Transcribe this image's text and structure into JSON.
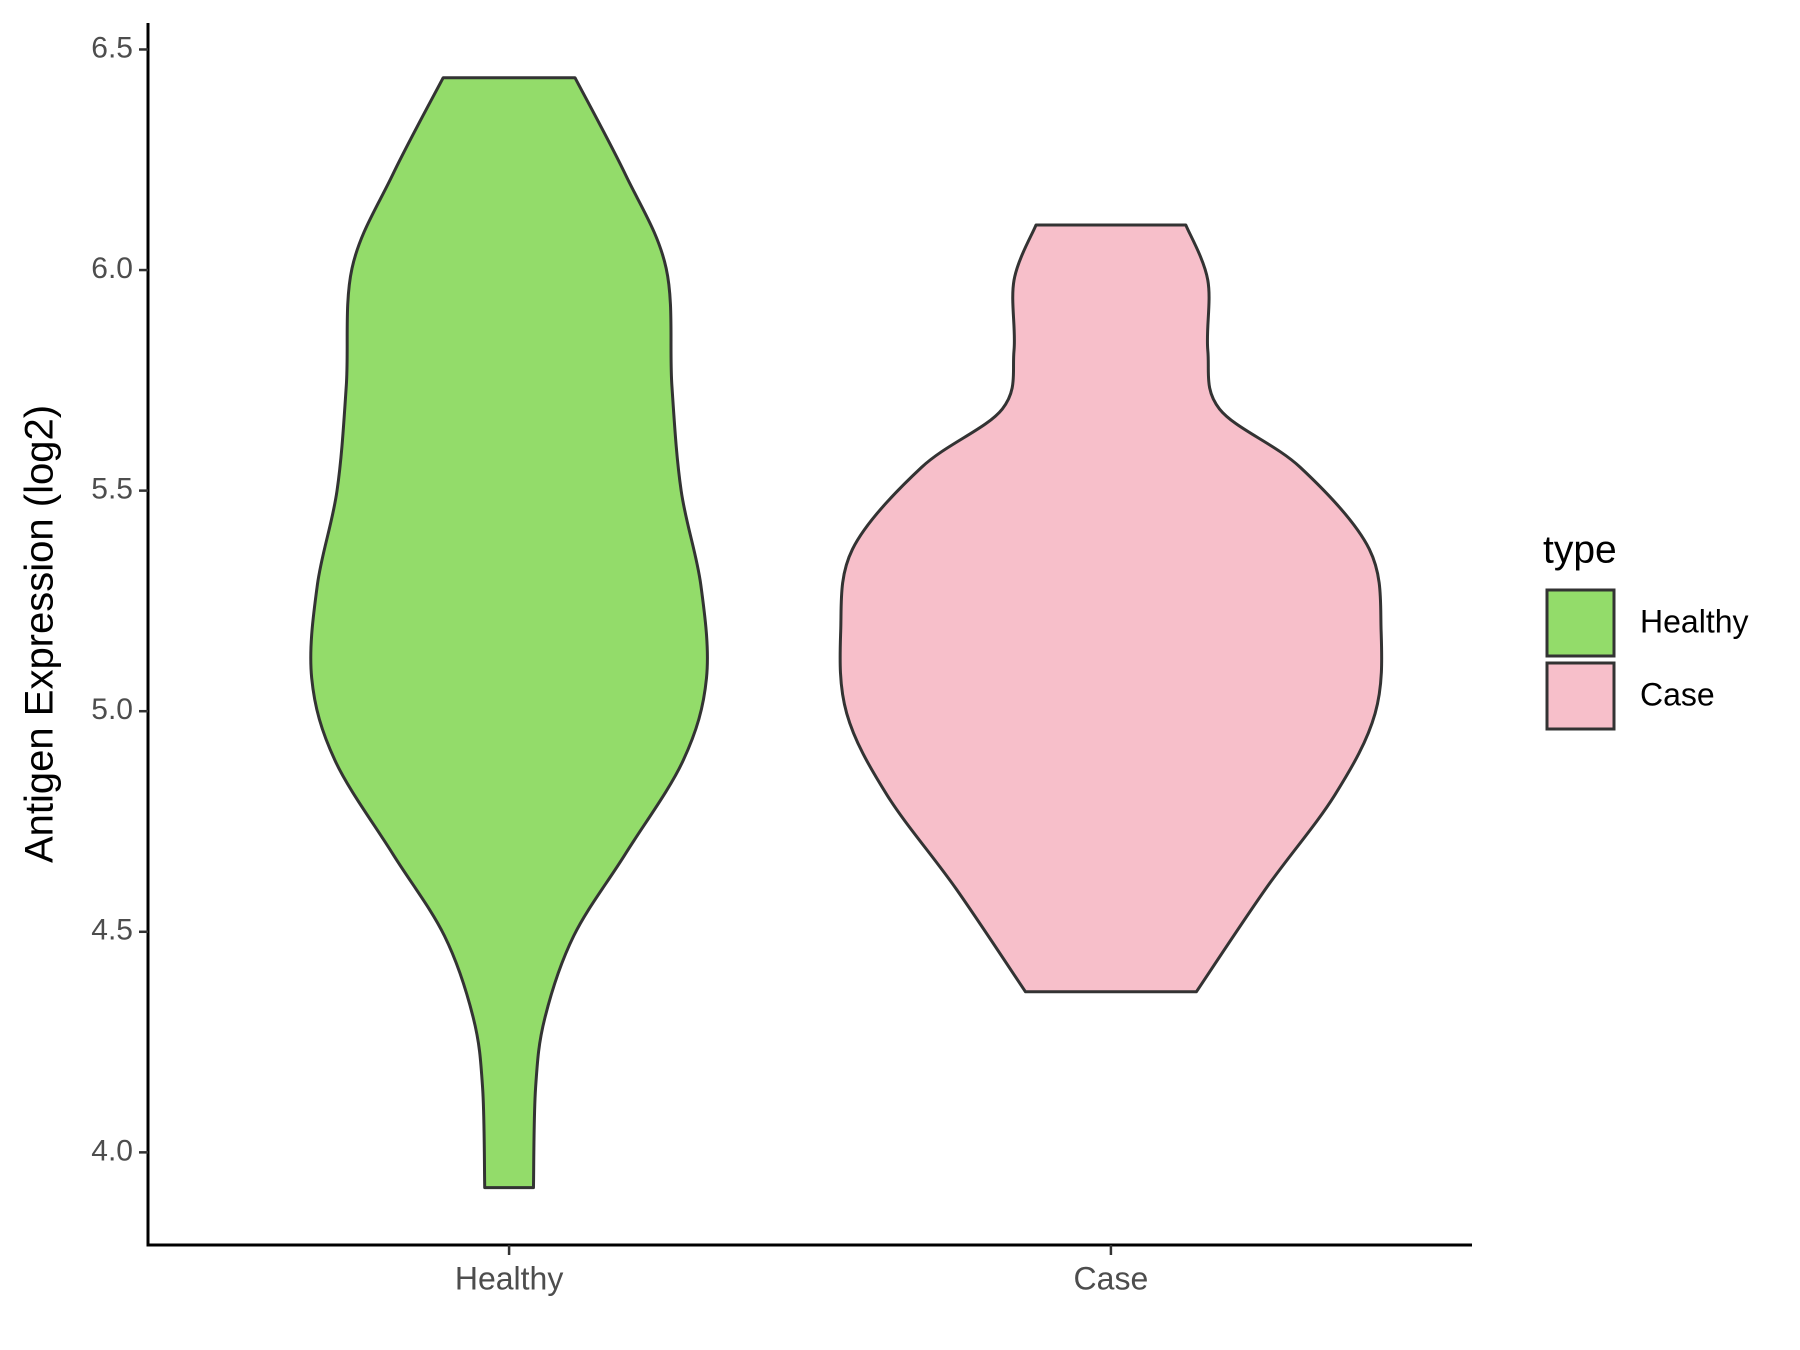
{
  "chart_data": {
    "type": "violin",
    "y_label": "Antigen Expression (log2)",
    "categories": [
      "Healthy",
      "Case"
    ],
    "legend_title": "type",
    "legend": "right",
    "grid": false,
    "ylim": [
      3.79,
      6.56
    ],
    "yticks": [
      {
        "value": 4.0,
        "label": "4.0"
      },
      4.5,
      {
        "value": 5.0,
        "label": "5.0"
      },
      5.5,
      {
        "value": 6.0,
        "label": "6.0"
      },
      6.5
    ],
    "series": [
      {
        "name": "Healthy",
        "color": "#93dc6a",
        "y": [
          3.92,
          4.146,
          4.305,
          4.491,
          4.677,
          4.889,
          5.075,
          5.287,
          5.499,
          5.738,
          6.004,
          6.216,
          6.436
        ],
        "width": [
          0.081,
          0.088,
          0.119,
          0.215,
          0.387,
          0.579,
          0.656,
          0.637,
          0.572,
          0.541,
          0.522,
          0.387,
          0.219
        ]
      },
      {
        "name": "Case",
        "color": "#f7bfca",
        "y": [
          4.364,
          4.597,
          4.81,
          4.995,
          5.181,
          5.367,
          5.553,
          5.685,
          5.818,
          5.977,
          6.102
        ],
        "width": [
          0.284,
          0.514,
          0.744,
          0.878,
          0.898,
          0.859,
          0.629,
          0.361,
          0.322,
          0.322,
          0.249
        ]
      }
    ]
  }
}
